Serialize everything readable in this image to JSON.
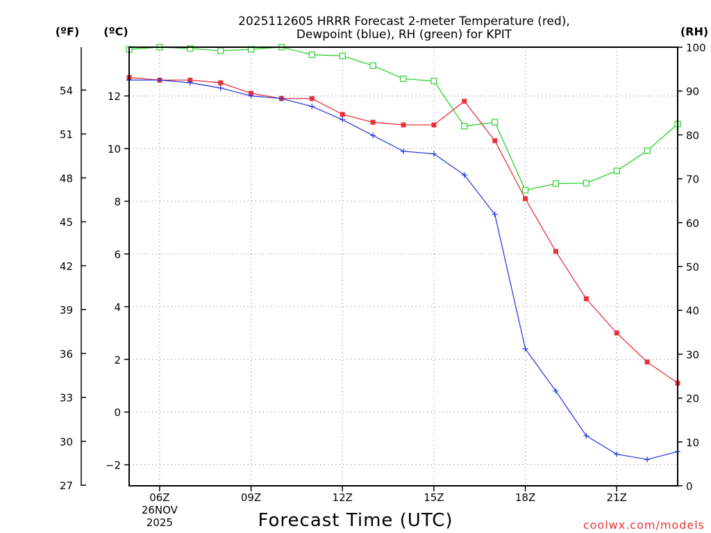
{
  "chart_data": {
    "type": "line",
    "title_line1": "2025112605 HRRR Forecast 2-meter Temperature (red),",
    "title_line2": "Dewpoint (blue), RH (green) for KPIT",
    "xlabel": "Forecast Time (UTC)",
    "credit": "coolwx.com/models",
    "units": {
      "fahrenheit": "(ºF)",
      "celsius": "(ºC)",
      "rh": "(RH)"
    },
    "x_range": [
      5,
      23
    ],
    "x_ticks": [
      {
        "hour": 6,
        "label": "06Z",
        "sub1": "26NOV",
        "sub2": "2025"
      },
      {
        "hour": 9,
        "label": "09Z"
      },
      {
        "hour": 12,
        "label": "12Z"
      },
      {
        "hour": 15,
        "label": "15Z"
      },
      {
        "hour": 18,
        "label": "18Z"
      },
      {
        "hour": 21,
        "label": "21Z"
      }
    ],
    "celsius_range": [
      -2.8,
      13.85
    ],
    "celsius_ticks": [
      {
        "value": 12,
        "label": "12"
      },
      {
        "value": 10,
        "label": "10"
      },
      {
        "value": 8,
        "label": "8"
      },
      {
        "value": 6,
        "label": "6"
      },
      {
        "value": 4,
        "label": "4"
      },
      {
        "value": 2,
        "label": "2"
      },
      {
        "value": 0,
        "label": "0"
      },
      {
        "value": -2,
        "label": "−2"
      }
    ],
    "fahrenheit_ticks": [
      {
        "value": 54,
        "label": "54"
      },
      {
        "value": 51,
        "label": "51"
      },
      {
        "value": 48,
        "label": "48"
      },
      {
        "value": 45,
        "label": "45"
      },
      {
        "value": 42,
        "label": "42"
      },
      {
        "value": 39,
        "label": "39"
      },
      {
        "value": 36,
        "label": "36"
      },
      {
        "value": 33,
        "label": "33"
      },
      {
        "value": 30,
        "label": "30"
      },
      {
        "value": 27,
        "label": "27"
      }
    ],
    "rh_range": [
      0,
      100
    ],
    "rh_ticks": [
      {
        "value": 100,
        "label": "100"
      },
      {
        "value": 90,
        "label": "90"
      },
      {
        "value": 80,
        "label": "80"
      },
      {
        "value": 70,
        "label": "70"
      },
      {
        "value": 60,
        "label": "60"
      },
      {
        "value": 50,
        "label": "50"
      },
      {
        "value": 40,
        "label": "40"
      },
      {
        "value": 30,
        "label": "30"
      },
      {
        "value": 20,
        "label": "20"
      },
      {
        "value": 10,
        "label": "10"
      },
      {
        "value": 0,
        "label": "0"
      }
    ],
    "hours": [
      5,
      6,
      7,
      8,
      9,
      10,
      11,
      12,
      13,
      14,
      15,
      16,
      17,
      18,
      19,
      20,
      21,
      22,
      23
    ],
    "series": [
      {
        "name": "Temperature",
        "unit": "C",
        "color": "#e8323a",
        "marker": "filled-square",
        "values": [
          12.7,
          12.6,
          12.6,
          12.5,
          12.1,
          11.9,
          11.9,
          11.3,
          11.0,
          10.9,
          10.9,
          11.8,
          10.3,
          8.1,
          6.1,
          4.3,
          3.0,
          1.9,
          1.1
        ]
      },
      {
        "name": "Dewpoint",
        "unit": "C",
        "color": "#2c3ee0",
        "marker": "plus",
        "values": [
          12.6,
          12.6,
          12.5,
          12.3,
          12.0,
          11.9,
          11.6,
          11.1,
          10.5,
          9.9,
          9.8,
          9.0,
          7.5,
          2.4,
          0.8,
          -0.9,
          -1.6,
          -1.8,
          -1.5
        ]
      },
      {
        "name": "Relative Humidity",
        "unit": "%",
        "color": "#2ad12a",
        "marker": "open-square",
        "values": [
          99.5,
          100,
          99.7,
          99.2,
          99.5,
          100,
          98.3,
          98.0,
          95.8,
          92.8,
          92.3,
          82.0,
          82.9,
          67.4,
          68.9,
          69.0,
          71.8,
          76.4,
          82.5
        ]
      }
    ]
  }
}
